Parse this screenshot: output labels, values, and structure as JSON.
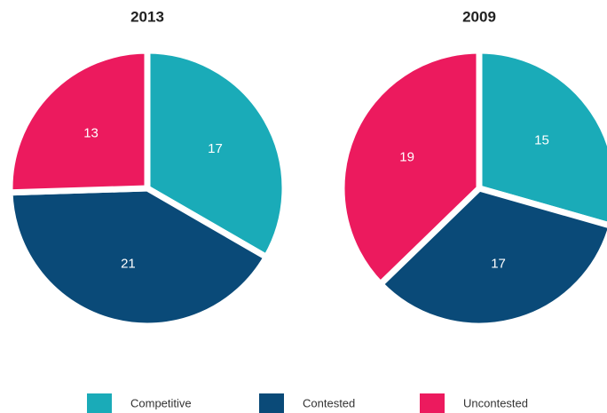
{
  "chart_data": [
    {
      "type": "pie",
      "title": "2013",
      "categories": [
        "Competitive",
        "Contested",
        "Uncontested"
      ],
      "values": [
        17,
        21,
        13
      ],
      "colors": [
        "#1aabb8",
        "#0a4a78",
        "#ec1a5e"
      ]
    },
    {
      "type": "pie",
      "title": "2009",
      "categories": [
        "Competitive",
        "Contested",
        "Uncontested"
      ],
      "values": [
        15,
        17,
        19
      ],
      "colors": [
        "#1aabb8",
        "#0a4a78",
        "#ec1a5e"
      ]
    }
  ]
}
